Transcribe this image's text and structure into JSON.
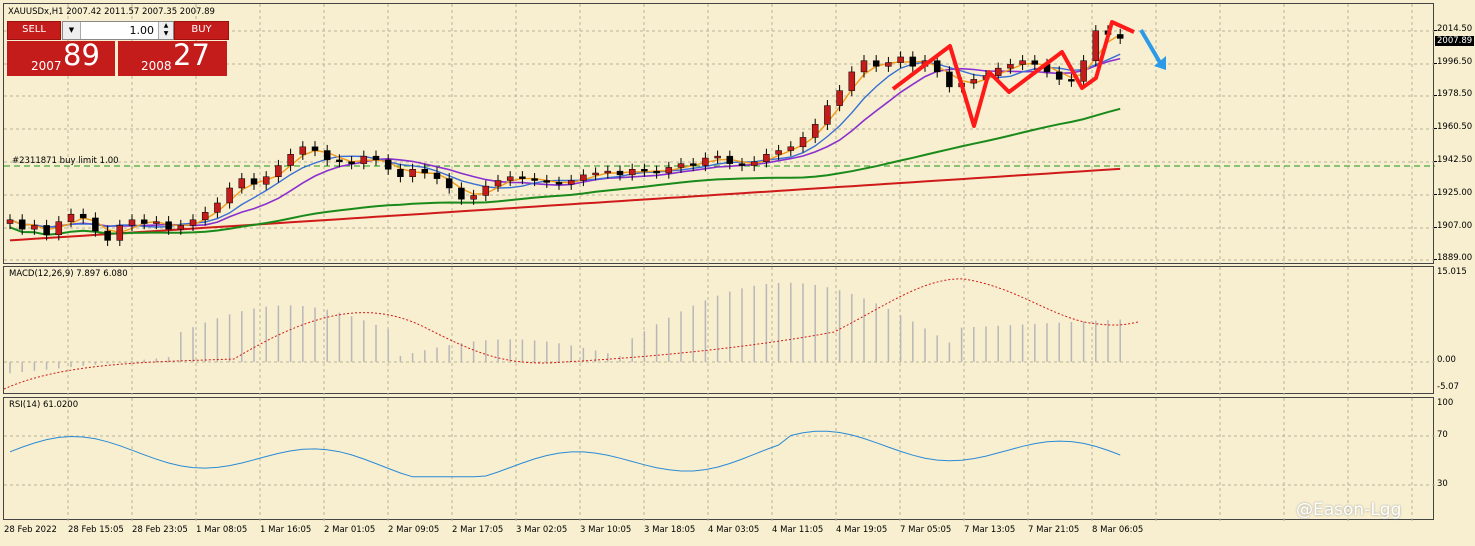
{
  "chart_header": {
    "symbol_line": "XAUUSDx,H1  2007.42 2011.57 2007.35 2007.89"
  },
  "trade_panel": {
    "sell_label": "SELL",
    "buy_label": "BUY",
    "lot_value": "1.00",
    "sell_price_prefix": "2007",
    "sell_price_main": "89",
    "buy_price_prefix": "2008",
    "buy_price_main": "27"
  },
  "order_line_label": "#2311871 buy limit 1.00",
  "current_price_tag": "2007.89",
  "price_axis": [
    "2014.50",
    "1996.50",
    "1978.50",
    "1960.50",
    "1942.50",
    "1925.00",
    "1907.00",
    "1889.00"
  ],
  "macd": {
    "label": "MACD(12,26,9) 7.897 6.080",
    "axis": [
      "15.015",
      "0.00",
      "-5.07"
    ]
  },
  "rsi": {
    "label": "RSI(14) 61.0200",
    "axis": [
      "100",
      "70",
      "30"
    ]
  },
  "time_axis": [
    "28 Feb 2022",
    "28 Feb 15:05",
    "28 Feb 23:05",
    "1 Mar 08:05",
    "1 Mar 16:05",
    "2 Mar 01:05",
    "2 Mar 09:05",
    "2 Mar 17:05",
    "3 Mar 02:05",
    "3 Mar 10:05",
    "3 Mar 18:05",
    "4 Mar 03:05",
    "4 Mar 11:05",
    "4 Mar 19:05",
    "7 Mar 05:05",
    "7 Mar 13:05",
    "7 Mar 21:05",
    "8 Mar 06:05"
  ],
  "watermark": "@Eason-Lgg",
  "colors": {
    "background": "#f7efcf",
    "bull": "#c41b1b",
    "bear": "#000000",
    "ma_fast": "#f39a1a",
    "ma_blue": "#3a6fd6",
    "ma_purple": "#8b2fd0",
    "ma_green": "#1a8a1a",
    "ma_red": "#d01a1a",
    "signal_arrow": "#2b9be8"
  },
  "chart_data": {
    "type": "candlestick",
    "symbol": "XAUUSDx",
    "timeframe": "H1",
    "last_bar": {
      "open": 2007.42,
      "high": 2011.57,
      "low": 2007.35,
      "close": 2007.89
    },
    "ylim": [
      1889,
      2022
    ],
    "close_series": [
      1911,
      1906,
      1908,
      1903,
      1910,
      1914,
      1912,
      1905,
      1900,
      1908,
      1911,
      1909,
      1910,
      1906,
      1908,
      1911,
      1915,
      1920,
      1928,
      1933,
      1930,
      1934,
      1940,
      1946,
      1950,
      1948,
      1943,
      1942,
      1941,
      1945,
      1943,
      1938,
      1934,
      1938,
      1936,
      1933,
      1928,
      1922,
      1924,
      1929,
      1932,
      1934,
      1933,
      1932,
      1931,
      1930,
      1932,
      1935,
      1936,
      1937,
      1935,
      1938,
      1937,
      1936,
      1939,
      1941,
      1940,
      1944,
      1945,
      1941,
      1940,
      1942,
      1946,
      1948,
      1950,
      1955,
      1962,
      1972,
      1980,
      1990,
      1996,
      1993,
      1995,
      1998,
      1993,
      1996,
      1990,
      1982,
      1984,
      1986,
      1988,
      1992,
      1994,
      1996,
      1994,
      1990,
      1986,
      1985,
      1996,
      2012,
      2010,
      2007.89
    ],
    "macd": {
      "hist_max": 15.015,
      "values_sign": "mostly positive, peak near 7 Mar"
    },
    "rsi_current": 61.02
  }
}
